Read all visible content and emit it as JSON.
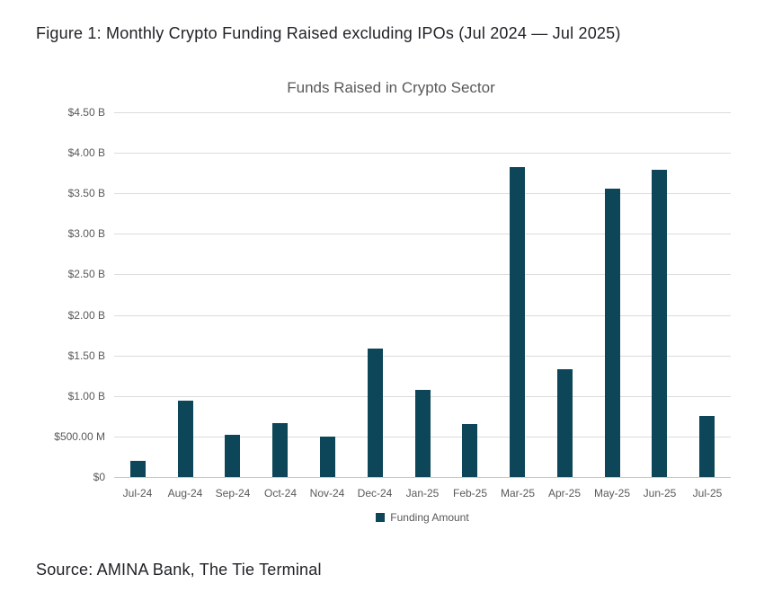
{
  "page": {
    "figure_caption": "Figure 1: Monthly Crypto Funding Raised excluding IPOs (Jul 2024 — Jul 2025)",
    "source_note": "Source: AMINA Bank, The Tie Terminal"
  },
  "colors": {
    "bar": "#0d4658",
    "gridline": "#dcdcdc",
    "axis_line": "#c8c8c8",
    "axis_text": "#595959",
    "caption_text": "#202227"
  },
  "chart_data": {
    "type": "bar",
    "title": "Funds Raised in Crypto Sector",
    "unit": "USD billions",
    "categories": [
      "Jul-24",
      "Aug-24",
      "Sep-24",
      "Oct-24",
      "Nov-24",
      "Dec-24",
      "Jan-25",
      "Feb-25",
      "Mar-25",
      "Apr-25",
      "May-25",
      "Jun-25",
      "Jul-25"
    ],
    "series": [
      {
        "name": "Funding Amount",
        "values": [
          0.2,
          0.94,
          0.52,
          0.67,
          0.5,
          1.59,
          1.08,
          0.65,
          3.82,
          1.33,
          3.56,
          3.79,
          0.75
        ]
      }
    ],
    "y_ticks": [
      {
        "label": "$4.50 B",
        "value": 4.5
      },
      {
        "label": "$4.00 B",
        "value": 4.0
      },
      {
        "label": "$3.50 B",
        "value": 3.5
      },
      {
        "label": "$3.00 B",
        "value": 3.0
      },
      {
        "label": "$2.50 B",
        "value": 2.5
      },
      {
        "label": "$2.00 B",
        "value": 2.0
      },
      {
        "label": "$1.50 B",
        "value": 1.5
      },
      {
        "label": "$1.00 B",
        "value": 1.0
      },
      {
        "label": "$500.00 M",
        "value": 0.5
      },
      {
        "label": "$0",
        "value": 0
      }
    ],
    "ylim": [
      0,
      4.5
    ],
    "xlabel": "",
    "ylabel": "",
    "grid": true,
    "legend_position": "bottom-center"
  }
}
